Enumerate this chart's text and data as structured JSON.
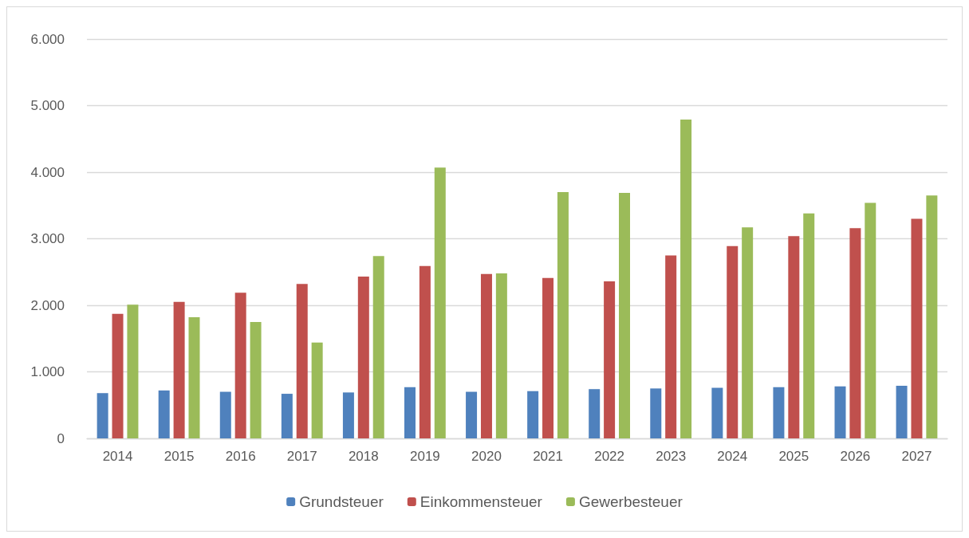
{
  "chart_data": {
    "type": "bar",
    "categories": [
      "2014",
      "2015",
      "2016",
      "2017",
      "2018",
      "2019",
      "2020",
      "2021",
      "2022",
      "2023",
      "2024",
      "2025",
      "2026",
      "2027"
    ],
    "series": [
      {
        "name": "Grundsteuer",
        "color": "#4f81bd",
        "values": [
          680,
          720,
          700,
          670,
          690,
          770,
          700,
          710,
          740,
          750,
          760,
          770,
          780,
          790
        ]
      },
      {
        "name": "Einkommensteuer",
        "color": "#c0504d",
        "values": [
          1870,
          2050,
          2190,
          2320,
          2430,
          2590,
          2470,
          2410,
          2360,
          2750,
          2890,
          3040,
          3160,
          3300
        ]
      },
      {
        "name": "Gewerbesteuer",
        "color": "#9bbb59",
        "values": [
          2010,
          1820,
          1750,
          1440,
          2740,
          4070,
          2480,
          3700,
          3690,
          4790,
          3170,
          3380,
          3540,
          3650
        ]
      }
    ],
    "ylim": [
      0,
      6000
    ],
    "yticks": [
      0,
      {
        "value": 1000,
        "label": "1.000"
      },
      {
        "value": 2000,
        "label": "2.000"
      },
      {
        "value": 3000,
        "label": "3.000"
      },
      {
        "value": 4000,
        "label": "4.000"
      },
      {
        "value": 5000,
        "label": "5.000"
      },
      {
        "value": 6000,
        "label": "6.000"
      }
    ],
    "grid": "y",
    "legend": "bottom"
  }
}
